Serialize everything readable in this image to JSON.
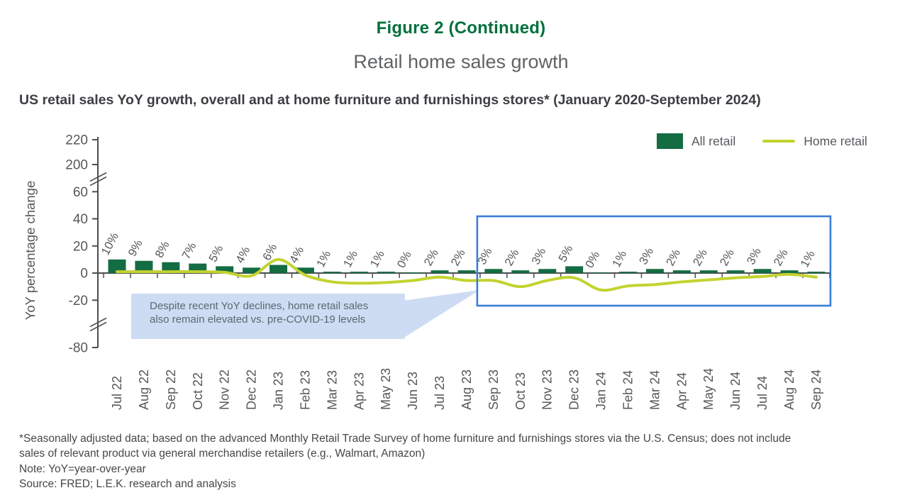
{
  "figure": {
    "title": "Figure 2 (Continued)",
    "subtitle": "Retail home sales growth",
    "heading": "US retail sales YoY growth, overall and at home furniture and furnishings stores* (January 2020-September 2024)"
  },
  "legend": {
    "all_retail": "All retail",
    "home_retail": "Home retail"
  },
  "callout": {
    "line1": "Despite recent YoY declines, home retail sales",
    "line2": "also remain elevated vs. pre-COVID-19 levels"
  },
  "footnotes": [
    "*Seasonally adjusted data; based on the advanced Monthly Retail Trade Survey of home furniture and furnishings stores via the U.S. Census; does not include",
    "sales of relevant product via general merchandise retailers (e.g., Walmart, Amazon)",
    "Note: YoY=year-over-year",
    "Source: FRED; L.E.K. research and analysis"
  ],
  "colors": {
    "title_green": "#00703c",
    "bar_green": "#146c42",
    "line_green": "#c3d32f",
    "highlight_blue": "#3a7ed4",
    "callout_blue": "#cddcf3",
    "axis_gray": "#55585c"
  },
  "chart_data": {
    "type": "bar+line",
    "title": "Retail home sales growth",
    "ylabel": "YoY percentage change",
    "xlabel": "",
    "categories": [
      "Jul 22",
      "Aug 22",
      "Sep 22",
      "Oct 22",
      "Nov 22",
      "Dec 22",
      "Jan 23",
      "Feb 23",
      "Mar 23",
      "Apr 23",
      "May 23",
      "Jun 23",
      "Jul 23",
      "Aug 23",
      "Sep 23",
      "Oct 23",
      "Nov 23",
      "Dec 23",
      "Jan 24",
      "Feb 24",
      "Mar 24",
      "Apr 24",
      "May 24",
      "Jun 24",
      "Jul 24",
      "Aug 24",
      "Sep 24"
    ],
    "series": [
      {
        "name": "All retail",
        "type": "bar",
        "color": "#146c42",
        "values": [
          10,
          9,
          8,
          7,
          5,
          4,
          6,
          4,
          1,
          1,
          1,
          0,
          2,
          2,
          3,
          2,
          3,
          5,
          0,
          1,
          3,
          2,
          2,
          2,
          3,
          2,
          1
        ],
        "data_labels": [
          "10%",
          "9%",
          "8%",
          "7%",
          "5%",
          "4%",
          "6%",
          "4%",
          "1%",
          "1%",
          "1%",
          "0%",
          "2%",
          "2%",
          "3%",
          "2%",
          "3%",
          "5%",
          "0%",
          "1%",
          "3%",
          "2%",
          "2%",
          "2%",
          "3%",
          "2%",
          "1%"
        ]
      },
      {
        "name": "Home retail",
        "type": "line",
        "color": "#c3d32f",
        "values": [
          1,
          1,
          1,
          1,
          0.5,
          -2,
          10,
          -1.5,
          -6.5,
          -7.5,
          -7,
          -5.5,
          -3,
          -5.5,
          -5.5,
          -10,
          -5.5,
          -3.5,
          -12.5,
          -9.5,
          -8.5,
          -6.5,
          -5,
          -3.5,
          -2.5,
          -1,
          -3
        ]
      }
    ],
    "y_ticks": [
      "220",
      "200",
      "60",
      "40",
      "20",
      "0",
      "-20",
      "-80"
    ],
    "y_axis_breaks": [
      "between 200 and 60",
      "between -20 and -80"
    ],
    "ylim_main": [
      -20,
      60
    ],
    "grid": false,
    "legend_position": "top-right",
    "highlight_box": {
      "from": "Sep 23",
      "to": "Sep 24"
    }
  }
}
